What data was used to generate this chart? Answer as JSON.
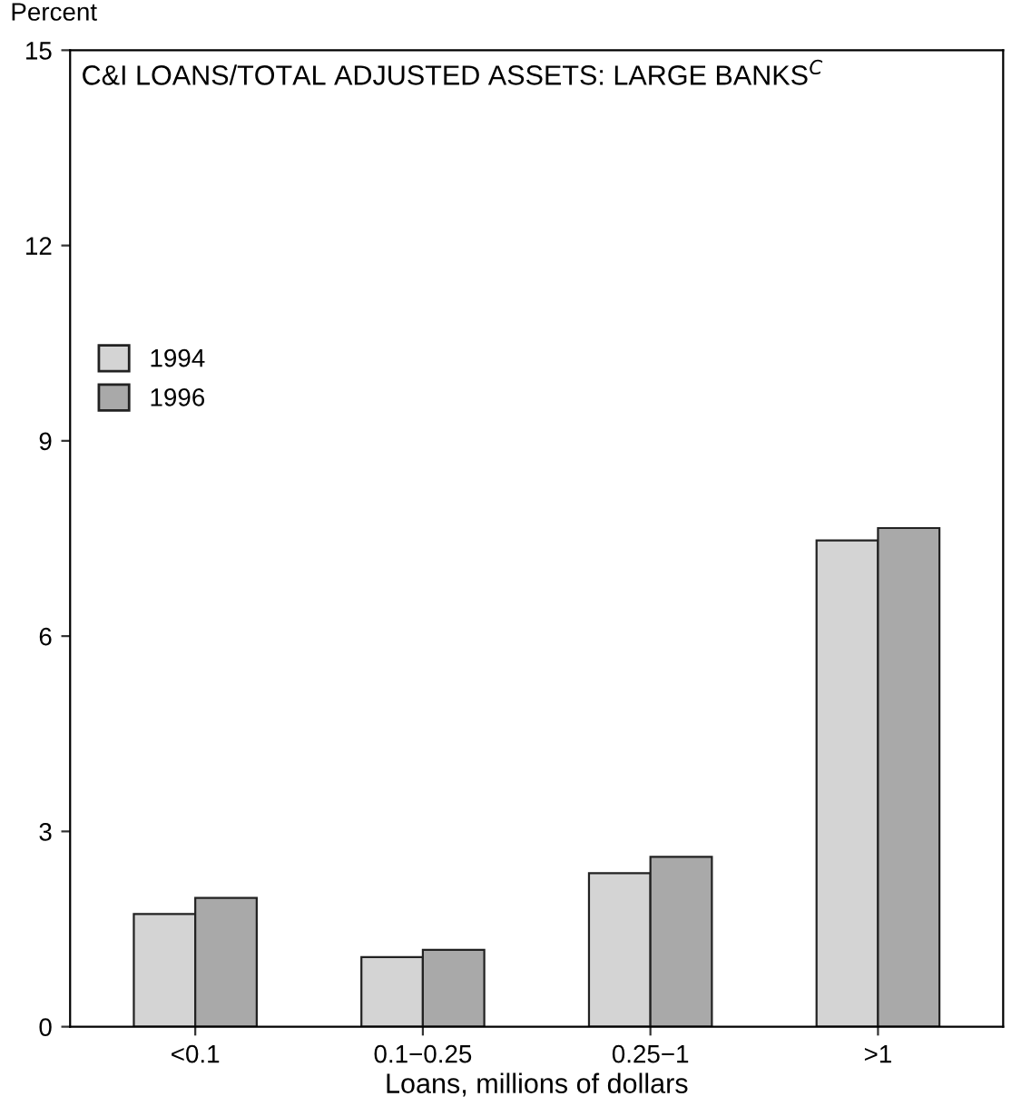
{
  "chart_data": {
    "type": "bar",
    "title": "C&I LOANS/TOTAL ADJUSTED ASSETS: LARGE BANKS$^{C}$",
    "categories": [
      "<0.1",
      "0.1−0.25",
      "0.25−1",
      ">1"
    ],
    "series": [
      {
        "name": "1994",
        "color": "#d4d4d4",
        "values": [
          1.73,
          1.07,
          2.36,
          7.47
        ]
      },
      {
        "name": "1996",
        "color": "#a9a9a9",
        "values": [
          1.98,
          1.18,
          2.61,
          7.66
        ]
      }
    ],
    "xlabel": "Loans, millions of dollars",
    "ylabel": "Percent",
    "ylim": [
      0,
      15
    ],
    "yticks": [
      0,
      3,
      6,
      9,
      12,
      15
    ],
    "legend": "top left",
    "grid": false
  }
}
